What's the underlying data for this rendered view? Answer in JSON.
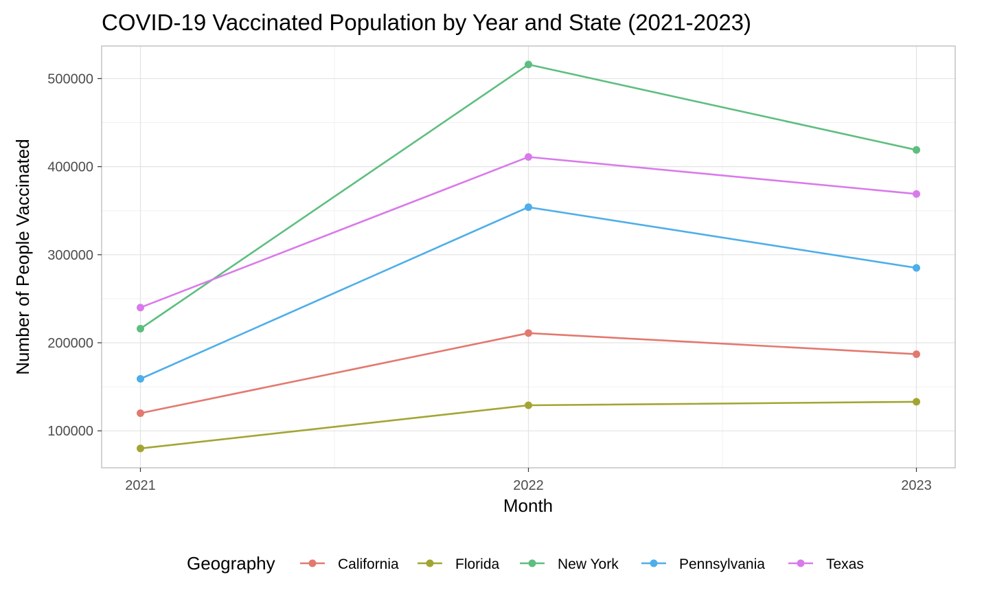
{
  "chart_data": {
    "type": "line",
    "title": "COVID-19 Vaccinated Population by Year and State (2021-2023)",
    "xlabel": "Month",
    "ylabel": "Number of People Vaccinated",
    "x": [
      2021,
      2022,
      2023
    ],
    "x_tick_labels": [
      "2021",
      "2022",
      "2023"
    ],
    "xlim": [
      2020.9,
      2023.1
    ],
    "ylim": [
      58000,
      537000
    ],
    "y_ticks": [
      100000,
      200000,
      300000,
      400000,
      500000
    ],
    "y_tick_labels": [
      "100000",
      "200000",
      "300000",
      "400000",
      "500000"
    ],
    "grid": true,
    "legend_title": "Geography",
    "legend_position": "bottom",
    "series": [
      {
        "name": "California",
        "color": "#E2796F",
        "values": [
          120000,
          211000,
          187000
        ]
      },
      {
        "name": "Florida",
        "color": "#A3A533",
        "values": [
          80000,
          129000,
          133000
        ]
      },
      {
        "name": "New York",
        "color": "#5DBE7F",
        "values": [
          216000,
          516000,
          419000
        ]
      },
      {
        "name": "Pennsylvania",
        "color": "#4DAEE9",
        "values": [
          159000,
          354000,
          285000
        ]
      },
      {
        "name": "Texas",
        "color": "#D97AEA",
        "values": [
          240000,
          411000,
          369000
        ]
      }
    ]
  }
}
